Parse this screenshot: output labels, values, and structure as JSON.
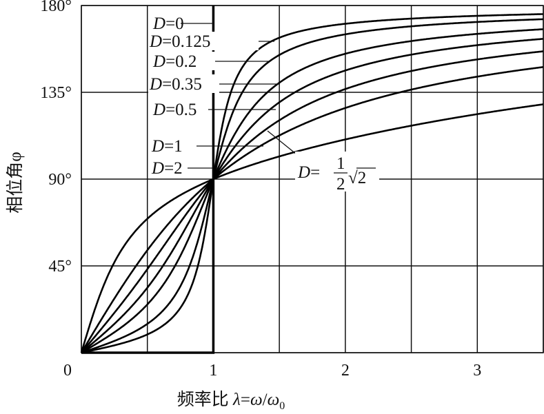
{
  "chart_data": {
    "type": "line",
    "title": "",
    "xlabel": "频率比 λ=ω/ω0",
    "xlabel_parts": {
      "prefix": "频率比 ",
      "lambda": "λ",
      "eq": "=",
      "omega": "ω",
      "slash": "/",
      "omega0": "ω",
      "sub0": "0"
    },
    "ylabel": "相位角φ",
    "xlim": [
      0,
      3.5
    ],
    "ylim": [
      0,
      180
    ],
    "x_ticks": [
      {
        "v": 0,
        "label": "0"
      },
      {
        "v": 1,
        "label": "1"
      },
      {
        "v": 2,
        "label": "2"
      },
      {
        "v": 3,
        "label": "3"
      }
    ],
    "y_ticks": [
      {
        "v": 45,
        "label": "45°"
      },
      {
        "v": 90,
        "label": "90°"
      },
      {
        "v": 135,
        "label": "135°"
      },
      {
        "v": 180,
        "label": "180°"
      }
    ],
    "grid": {
      "x_step": 0.5,
      "y_step": 45
    },
    "formula": "phi = atan2(2*D*lambda, 1 - lambda^2)",
    "series": [
      {
        "name": "D=0",
        "D": 0,
        "label_var": "D",
        "label_val": "=0"
      },
      {
        "name": "D=0.125",
        "D": 0.125,
        "label_var": "D",
        "label_val": "=0.125"
      },
      {
        "name": "D=0.2",
        "D": 0.2,
        "label_var": "D",
        "label_val": "=0.2"
      },
      {
        "name": "D=0.35",
        "D": 0.35,
        "label_var": "D",
        "label_val": "=0.35"
      },
      {
        "name": "D=0.5",
        "D": 0.5,
        "label_var": "D",
        "label_val": "=0.5"
      },
      {
        "name": "D=½√2",
        "D": 0.7071,
        "label_var": "D",
        "label_val": "=",
        "frac_num": "1",
        "frac_den": "2",
        "root": "√2"
      },
      {
        "name": "D=1",
        "D": 1,
        "label_var": "D",
        "label_val": "=1"
      },
      {
        "name": "D=2",
        "D": 2,
        "label_var": "D",
        "label_val": "=2"
      }
    ]
  }
}
